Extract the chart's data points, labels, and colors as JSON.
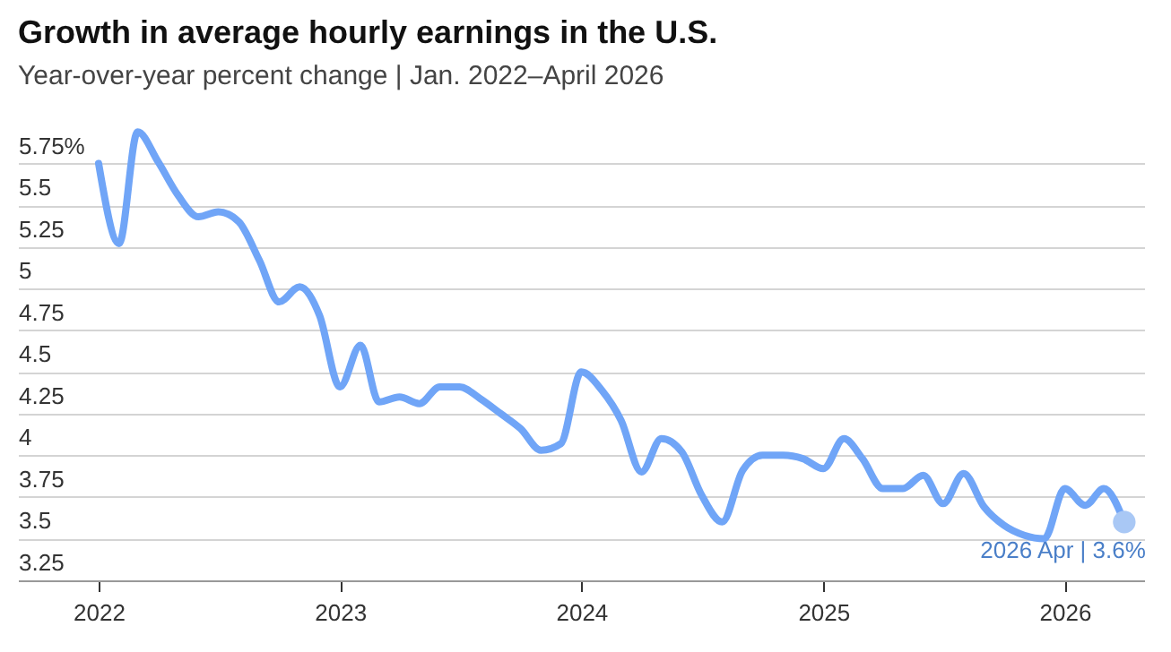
{
  "chart_data": {
    "type": "line",
    "title": "Growth in average hourly earnings in the U.S.",
    "subtitle": "Year-over-year percent change | Jan. 2022–April 2026",
    "x": [
      "2022-01",
      "2022-02",
      "2022-03",
      "2022-04",
      "2022-05",
      "2022-06",
      "2022-07",
      "2022-08",
      "2022-09",
      "2022-10",
      "2022-11",
      "2022-12",
      "2023-01",
      "2023-02",
      "2023-03",
      "2023-04",
      "2023-05",
      "2023-06",
      "2023-07",
      "2023-08",
      "2023-09",
      "2023-10",
      "2023-11",
      "2023-12",
      "2024-01",
      "2024-02",
      "2024-03",
      "2024-04",
      "2024-05",
      "2024-06",
      "2024-07",
      "2024-08",
      "2024-09",
      "2024-10",
      "2024-11",
      "2024-12",
      "2025-01",
      "2025-02",
      "2025-03",
      "2025-04",
      "2025-05",
      "2025-06",
      "2025-07",
      "2025-08",
      "2025-09",
      "2025-10",
      "2025-11",
      "2025-12",
      "2026-01",
      "2026-02",
      "2026-03",
      "2026-04"
    ],
    "series": [
      {
        "color": "#70a5f7",
        "values": [
          5.75,
          5.27,
          5.94,
          5.76,
          5.56,
          5.43,
          5.46,
          5.4,
          5.17,
          4.92,
          5.01,
          4.84,
          4.41,
          4.66,
          4.32,
          4.35,
          4.31,
          4.41,
          4.41,
          4.34,
          4.25,
          4.16,
          4.03,
          4.07,
          4.5,
          4.39,
          4.21,
          3.9,
          4.1,
          4.02,
          3.76,
          3.6,
          3.91,
          4.0,
          4.0,
          3.98,
          3.92,
          4.1,
          3.98,
          3.8,
          3.8,
          3.88,
          3.71,
          3.89,
          3.69,
          3.58,
          3.52,
          3.5,
          3.8,
          3.7,
          3.8,
          3.6
        ]
      }
    ],
    "xlim": [
      "2021-09",
      "2026-05"
    ],
    "xticks": [
      "2022",
      "2023",
      "2024",
      "2025",
      "2026"
    ],
    "ylim": [
      3.25,
      6.0
    ],
    "yticks": [
      3.25,
      3.5,
      3.75,
      4,
      4.25,
      4.5,
      4.75,
      5,
      5.25,
      5.5,
      {
        "value": 5.75,
        "label": "5.75%"
      }
    ],
    "grid": "y",
    "line_style": "solid",
    "marker": "none",
    "annotations": [
      {
        "text": "2026 Apr | 3.6%",
        "x": "2026-04",
        "y": 3.6
      }
    ]
  }
}
